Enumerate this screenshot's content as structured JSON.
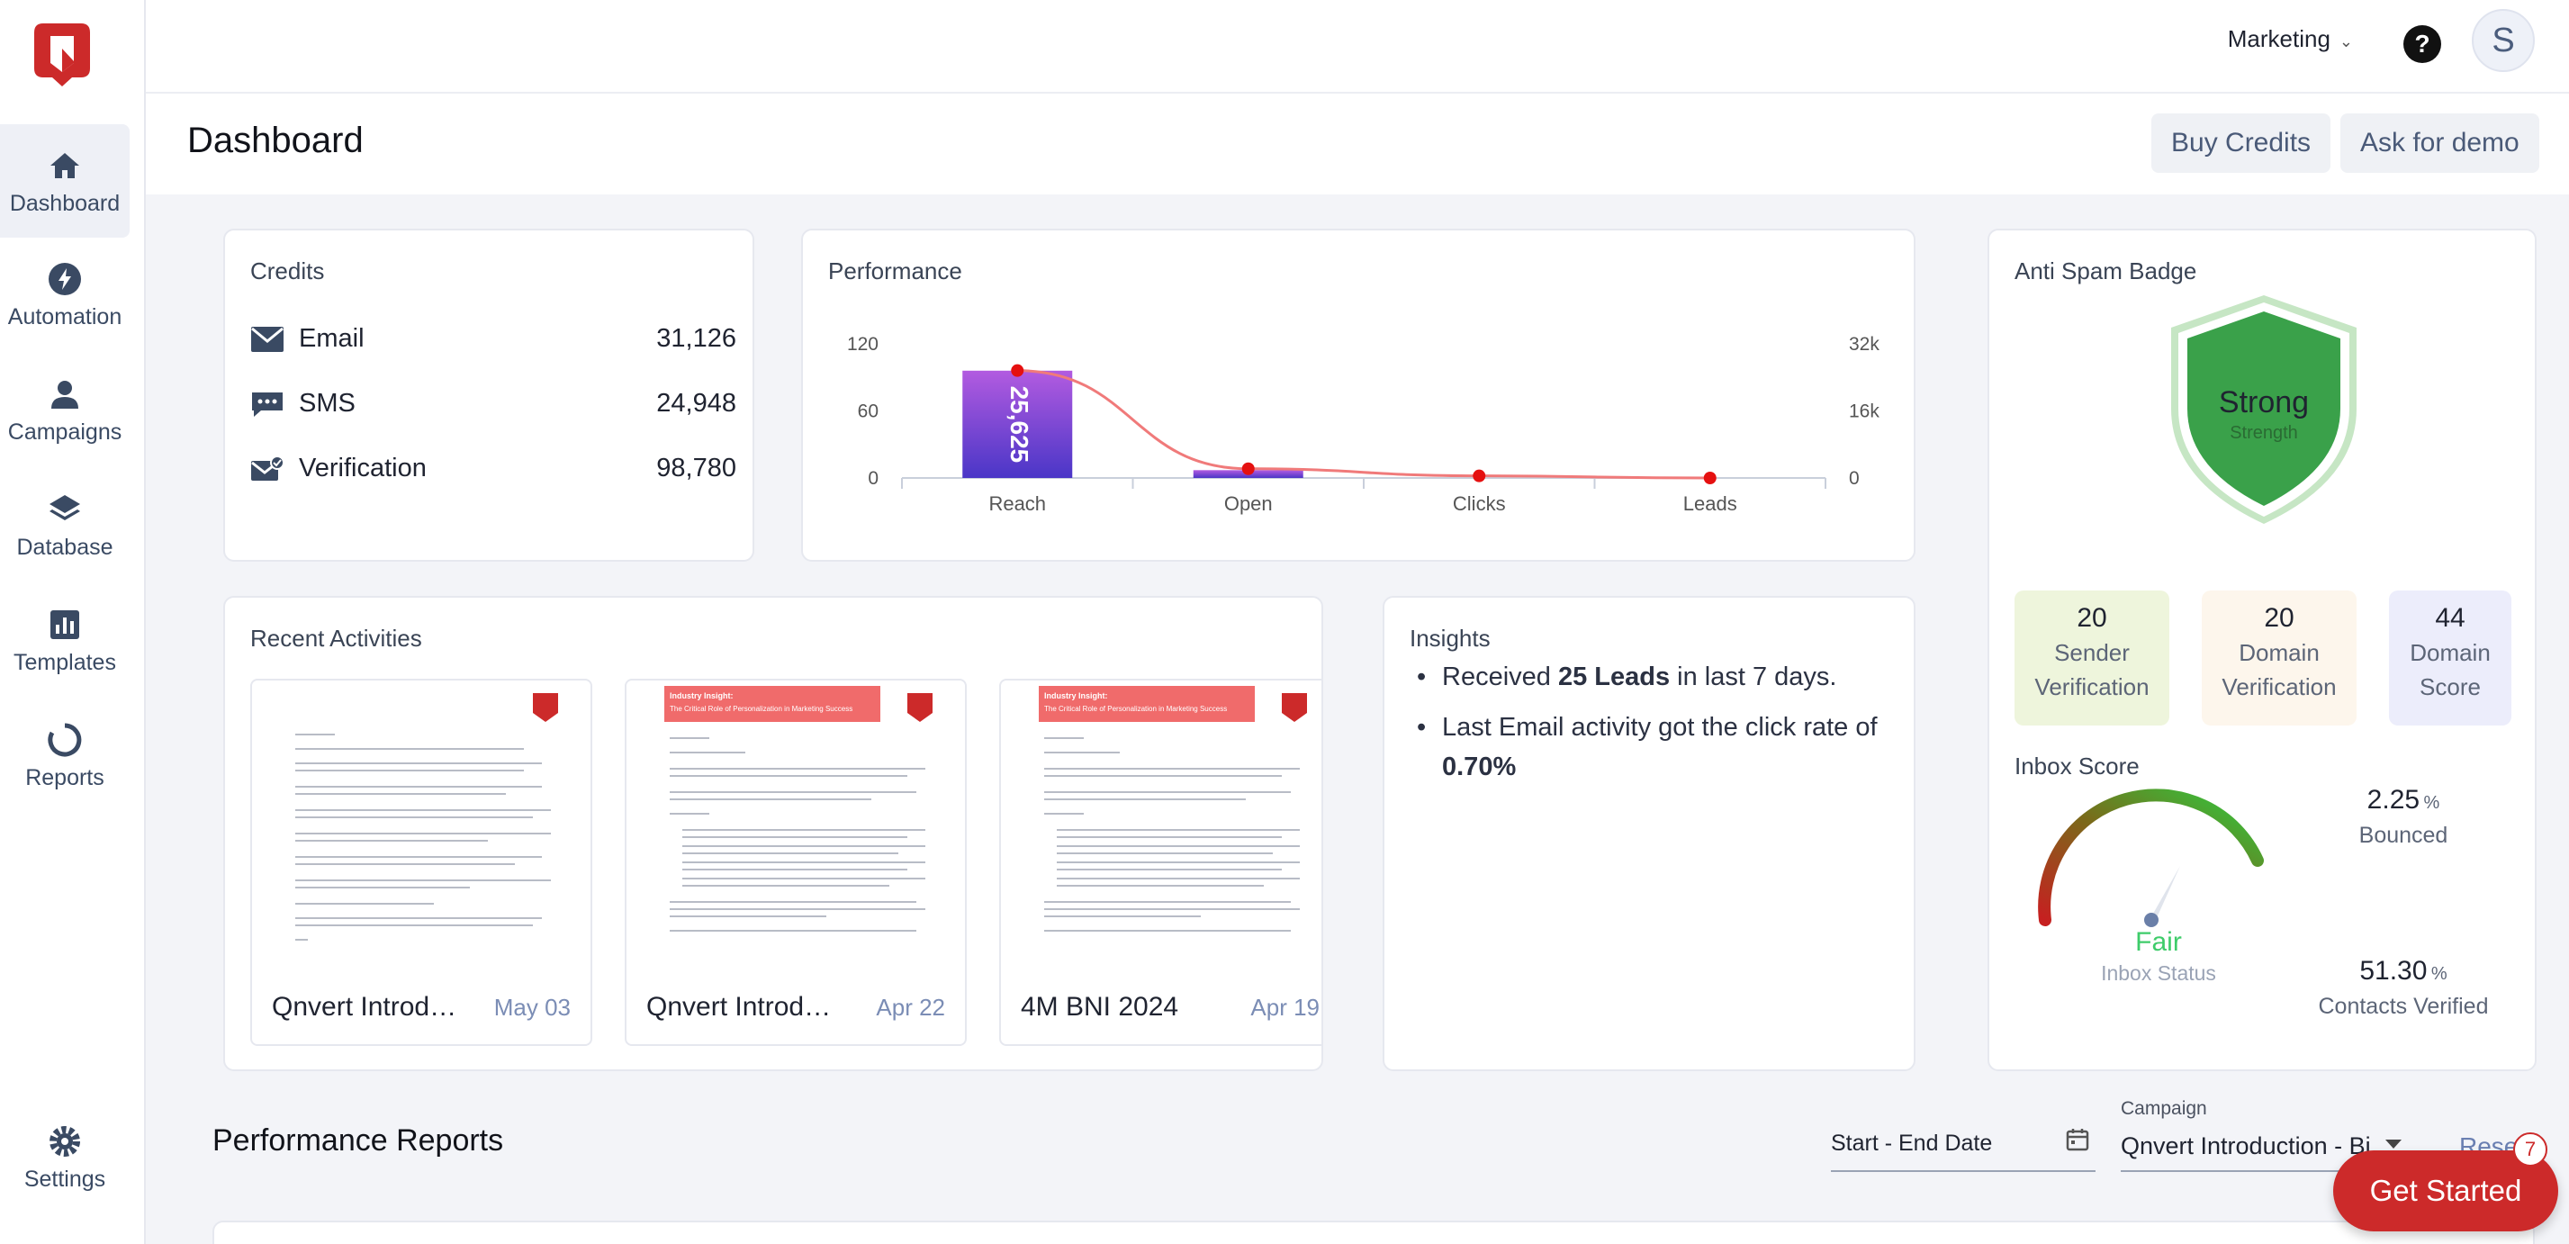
{
  "brand": {
    "accent": "#cc2a2a",
    "nav_color": "#3a4a63"
  },
  "sidebar": {
    "items": [
      {
        "label": "Dashboard",
        "icon": "home-icon"
      },
      {
        "label": "Automation",
        "icon": "bolt-icon"
      },
      {
        "label": "Campaigns",
        "icon": "person-icon"
      },
      {
        "label": "Database",
        "icon": "layers-icon"
      },
      {
        "label": "Templates",
        "icon": "bar-chart-icon"
      },
      {
        "label": "Reports",
        "icon": "circle-progress-icon"
      }
    ],
    "settings_label": "Settings"
  },
  "topbar": {
    "workspace": "Marketing",
    "help": "?",
    "avatar_initial": "S"
  },
  "header": {
    "title": "Dashboard",
    "buy_credits": "Buy Credits",
    "ask_demo": "Ask for demo"
  },
  "credits": {
    "title": "Credits",
    "rows": [
      {
        "label": "Email",
        "value": "31,126",
        "icon": "envelope-icon"
      },
      {
        "label": "SMS",
        "value": "24,948",
        "icon": "sms-icon"
      },
      {
        "label": "Verification",
        "value": "98,780",
        "icon": "verified-mail-icon"
      }
    ]
  },
  "performance": {
    "title": "Performance"
  },
  "chart_data": {
    "type": "bar",
    "categories": [
      "Reach",
      "Open",
      "Clicks",
      "Leads"
    ],
    "series": [
      {
        "type": "bar",
        "values": [
          96,
          7,
          0,
          0
        ],
        "bar_label": "25,625"
      },
      {
        "type": "line",
        "values": [
          25625,
          2200,
          500,
          0
        ]
      }
    ],
    "left_ticks": [
      "120",
      "60",
      "0"
    ],
    "right_ticks": [
      "32k",
      "16k",
      "0"
    ],
    "ylim": [
      0,
      120
    ],
    "y2lim": [
      0,
      32000
    ],
    "grid": false
  },
  "antispam": {
    "title": "Anti Spam Badge",
    "badge_label": "Strong",
    "badge_sub": "Strength",
    "metrics": [
      {
        "value": "20",
        "label1": "Sender",
        "label2": "Verification",
        "color": "#eef5dc"
      },
      {
        "value": "20",
        "label1": "Domain",
        "label2": "Verification",
        "color": "#fdf6ec"
      },
      {
        "value": "44",
        "label1": "Domain",
        "label2": "Score",
        "color": "#ecedfb"
      }
    ],
    "inbox_title": "Inbox Score",
    "inbox_status": "Fair",
    "inbox_status_label": "Inbox Status",
    "bounced_value": "2.25",
    "bounced_unit": "%",
    "bounced_label": "Bounced",
    "verified_value": "51.30",
    "verified_unit": "%",
    "verified_label": "Contacts Verified"
  },
  "activities": {
    "title": "Recent Activities",
    "items": [
      {
        "name": "Qnvert Introd…",
        "date": "May 03"
      },
      {
        "name": "Qnvert Introd…",
        "date": "Apr 22"
      },
      {
        "name": "4M BNI 2024",
        "date": "Apr 19"
      }
    ],
    "doc_banner": "Industry Insight:",
    "doc_banner_sub": "The Critical Role of Personalization in Marketing Success"
  },
  "insights": {
    "title": "Insights",
    "line1_pre": "Received",
    "line1_bold": "25 Leads",
    "line1_post": "in last 7 days.",
    "line2_pre": "Last Email activity got the click rate of",
    "line2_bold": "0.70%"
  },
  "reports": {
    "title": "Performance Reports",
    "date_placeholder": "Start - End Date",
    "campaign_label": "Campaign",
    "campaign_value": "Qnvert Introduction - Bi…",
    "reset": "Reset",
    "get_started": "Get Started",
    "badge_count": "7"
  }
}
